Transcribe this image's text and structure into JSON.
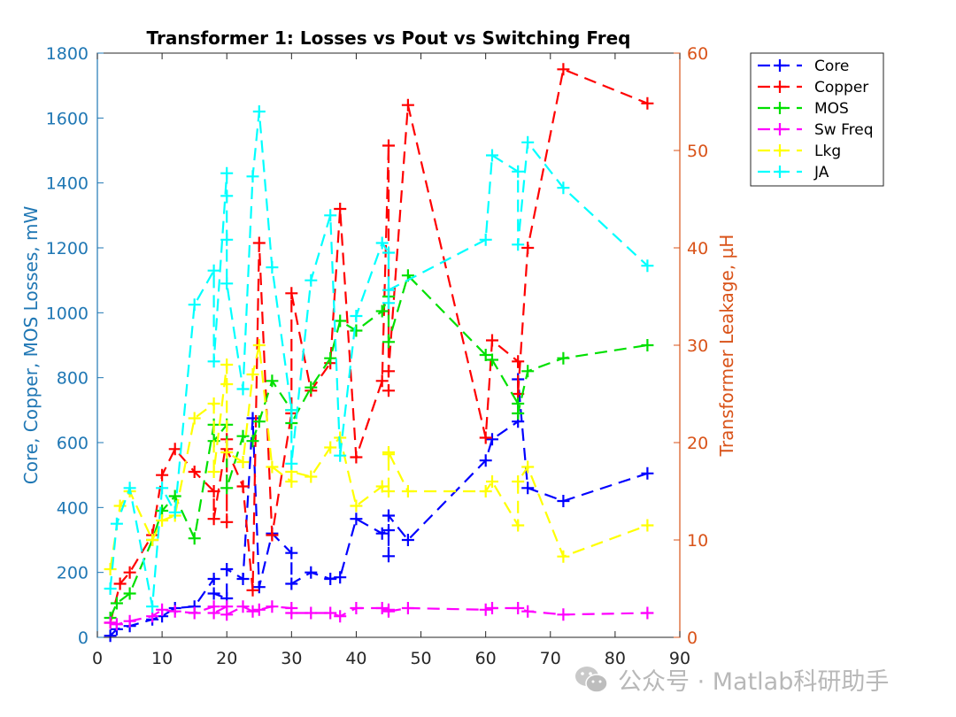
{
  "chart_data": {
    "type": "line",
    "title": "Transformer 1: Losses vs Pout vs Switching Freq",
    "ylabel": "Core, Copper, MOS Losses, mW",
    "y2label": "Transformer Leakage, µH",
    "xlim": [
      0,
      90
    ],
    "ylim": [
      0,
      1800
    ],
    "y2lim": [
      0,
      60
    ],
    "xticks": [
      0,
      10,
      20,
      30,
      40,
      50,
      60,
      70,
      80,
      90
    ],
    "yticks": [
      0,
      200,
      400,
      600,
      800,
      1000,
      1200,
      1400,
      1600,
      1800
    ],
    "y2ticks": [
      0,
      10,
      20,
      30,
      40,
      50,
      60
    ],
    "grid": false,
    "legend_position": "outside-top-right",
    "colors": {
      "left_axis": "#1f77b4",
      "right_axis": "#d95319"
    },
    "series": [
      {
        "name": "Core",
        "color": "#0000ff",
        "axis": "left",
        "x": [
          2,
          3,
          5,
          8.5,
          10,
          12,
          15,
          18,
          18,
          20,
          20,
          22.5,
          24,
          25,
          27,
          30,
          30,
          33,
          36,
          37.5,
          40,
          44,
          45,
          45,
          45,
          48,
          60,
          61,
          65,
          65,
          66.5,
          72,
          85
        ],
        "y": [
          5,
          25,
          35,
          55,
          65,
          90,
          95,
          180,
          135,
          120,
          210,
          180,
          675,
          155,
          320,
          260,
          165,
          200,
          180,
          185,
          365,
          320,
          330,
          250,
          375,
          300,
          545,
          610,
          665,
          795,
          460,
          420,
          505
        ]
      },
      {
        "name": "Copper",
        "color": "#ff0000",
        "axis": "left",
        "x": [
          2,
          3.5,
          5,
          8.5,
          10,
          12,
          15,
          18,
          18,
          20,
          20,
          20,
          22.5,
          24,
          25,
          27,
          30,
          30,
          33,
          36,
          37.5,
          40,
          44,
          45,
          45,
          45,
          48,
          60,
          61,
          65,
          65,
          66.5,
          72,
          85
        ],
        "y": [
          45,
          165,
          200,
          315,
          500,
          580,
          510,
          450,
          365,
          610,
          355,
          580,
          465,
          145,
          1215,
          315,
          690,
          1060,
          760,
          845,
          1320,
          555,
          790,
          1515,
          760,
          820,
          1640,
          615,
          915,
          850,
          750,
          1200,
          1750,
          1645
        ]
      },
      {
        "name": "MOS",
        "color": "#00e000",
        "axis": "left",
        "x": [
          2,
          3,
          5,
          8.5,
          10,
          12,
          15,
          18,
          18,
          20,
          20,
          22.5,
          24,
          25,
          27,
          30,
          30,
          33,
          36,
          37.5,
          40,
          44,
          45,
          45,
          48,
          60,
          61,
          65,
          65,
          66.5,
          72,
          85
        ],
        "y": [
          60,
          105,
          135,
          300,
          390,
          435,
          305,
          655,
          605,
          655,
          460,
          620,
          605,
          665,
          790,
          700,
          660,
          770,
          860,
          975,
          945,
          1005,
          1050,
          910,
          1115,
          870,
          855,
          720,
          690,
          820,
          860,
          900
        ]
      },
      {
        "name": "Sw Freq",
        "color": "#ff00ff",
        "axis": "left",
        "x": [
          2,
          3,
          5,
          8.5,
          10,
          12,
          15,
          18,
          18,
          20,
          20,
          22.5,
          24,
          25,
          27,
          30,
          30,
          33,
          36,
          37.5,
          40,
          44,
          45,
          45,
          48,
          60,
          61,
          65,
          66.5,
          72,
          85
        ],
        "y": [
          45,
          40,
          50,
          65,
          85,
          80,
          75,
          95,
          75,
          95,
          70,
          95,
          80,
          85,
          95,
          90,
          75,
          75,
          75,
          65,
          90,
          90,
          85,
          80,
          90,
          85,
          90,
          90,
          80,
          70,
          75
        ]
      },
      {
        "name": "Lkg",
        "color": "#ffff00",
        "axis": "right",
        "x": [
          2,
          3.5,
          5,
          8.5,
          10,
          12,
          15,
          18,
          18,
          20,
          20,
          20,
          22.5,
          24,
          25,
          27,
          30,
          30,
          33,
          36,
          37.5,
          40,
          44,
          45,
          45,
          45,
          48,
          60,
          61,
          65,
          65,
          66.5,
          72,
          85
        ],
        "y": [
          7,
          13.5,
          15,
          10,
          12,
          12.5,
          22.5,
          24,
          17,
          28,
          26,
          19,
          18,
          27,
          30,
          17.5,
          16,
          17,
          16.5,
          19.5,
          20.5,
          13.5,
          15.5,
          15,
          18.8,
          19,
          15,
          15,
          16,
          11.5,
          16,
          17.5,
          8.3,
          11.5
        ]
      },
      {
        "name": "JA",
        "color": "#00ffff",
        "axis": "left",
        "x": [
          2,
          3,
          5,
          8.5,
          10,
          12,
          15,
          18,
          18,
          20,
          20,
          20,
          20,
          22.5,
          24,
          25,
          27,
          30,
          30,
          33,
          36,
          37.5,
          40,
          44,
          45,
          45,
          45,
          60,
          61,
          65,
          65,
          66.5,
          72,
          85
        ],
        "y": [
          150,
          350,
          460,
          95,
          460,
          385,
          1025,
          1130,
          850,
          1430,
          1360,
          1225,
          1090,
          765,
          1420,
          1620,
          1140,
          700,
          535,
          1100,
          1300,
          560,
          990,
          1215,
          1185,
          1030,
          1070,
          1225,
          1485,
          1435,
          1210,
          1525,
          1385,
          1145
        ]
      }
    ]
  },
  "watermark": {
    "text": "公众号 · Matlab科研助手",
    "icon": "wechat-icon"
  }
}
